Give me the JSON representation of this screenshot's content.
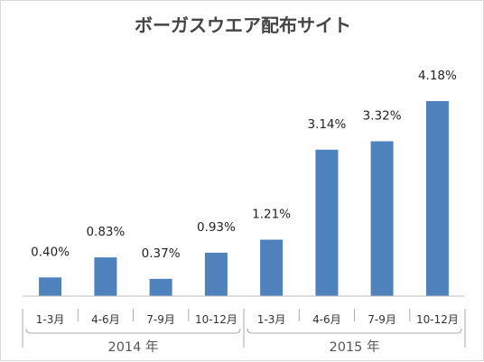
{
  "chart_data": {
    "type": "bar",
    "title": "ボーガスウエア配布サイト",
    "categories": [
      "1-3月",
      "4-6月",
      "7-9月",
      "10-12月",
      "1-3月",
      "4-6月",
      "7-9月",
      "10-12月"
    ],
    "category_groups": [
      {
        "label": "2014 年",
        "count": 4
      },
      {
        "label": "2015 年",
        "count": 4
      }
    ],
    "values": [
      0.4,
      0.83,
      0.37,
      0.93,
      1.21,
      3.14,
      3.32,
      4.18
    ],
    "value_labels": [
      "0.40%",
      "0.83%",
      "0.37%",
      "0.93%",
      "1.21%",
      "3.14%",
      "3.32%",
      "4.18%"
    ],
    "ylim": [
      0,
      4.2
    ],
    "grid": false,
    "legend": "none",
    "bar_color": "#4f81bd"
  }
}
